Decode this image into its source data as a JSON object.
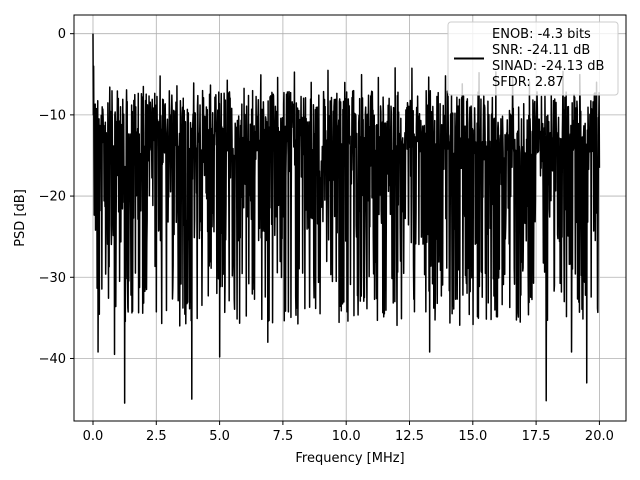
{
  "chart_data": {
    "type": "line",
    "title": "",
    "xlabel": "Frequency [MHz]",
    "ylabel": "PSD [dB]",
    "xlim": [
      -0.75,
      21.05
    ],
    "ylim": [
      -47.7,
      2.3
    ],
    "xticks": [
      0.0,
      2.5,
      5.0,
      7.5,
      10.0,
      12.5,
      15.0,
      17.5,
      20.0
    ],
    "xtick_labels": [
      "0.0",
      "2.5",
      "5.0",
      "7.5",
      "10.0",
      "12.5",
      "15.0",
      "17.5",
      "20.0"
    ],
    "yticks": [
      0,
      -10,
      -20,
      -30,
      -40
    ],
    "ytick_labels": [
      "0",
      "−10",
      "−20",
      "−30",
      "−40"
    ],
    "grid": true,
    "legend_position": "top-right",
    "legend_lines": [
      "ENOB: -4.3 bits",
      "SNR: -24.11 dB",
      "SINAD: -24.13 dB",
      "SFDR: 2.87"
    ],
    "line_color": "#000000",
    "series": [
      {
        "x_start": 0.0,
        "x_end": 20.0,
        "num_points": 1600,
        "peak": {
          "x": 0.0,
          "y": 0.0
        },
        "typical_range": [
          -30,
          -5
        ],
        "notable_dips": [
          {
            "x": 0.2,
            "y": -39.2
          },
          {
            "x": 0.85,
            "y": -39.5
          },
          {
            "x": 1.25,
            "y": -45.5
          },
          {
            "x": 3.9,
            "y": -45.0
          },
          {
            "x": 5.0,
            "y": -39.8
          },
          {
            "x": 6.9,
            "y": -38.0
          },
          {
            "x": 13.3,
            "y": -39.2
          },
          {
            "x": 17.9,
            "y": -45.2
          },
          {
            "x": 18.9,
            "y": -39.2
          },
          {
            "x": 19.5,
            "y": -43.0
          }
        ]
      }
    ]
  }
}
